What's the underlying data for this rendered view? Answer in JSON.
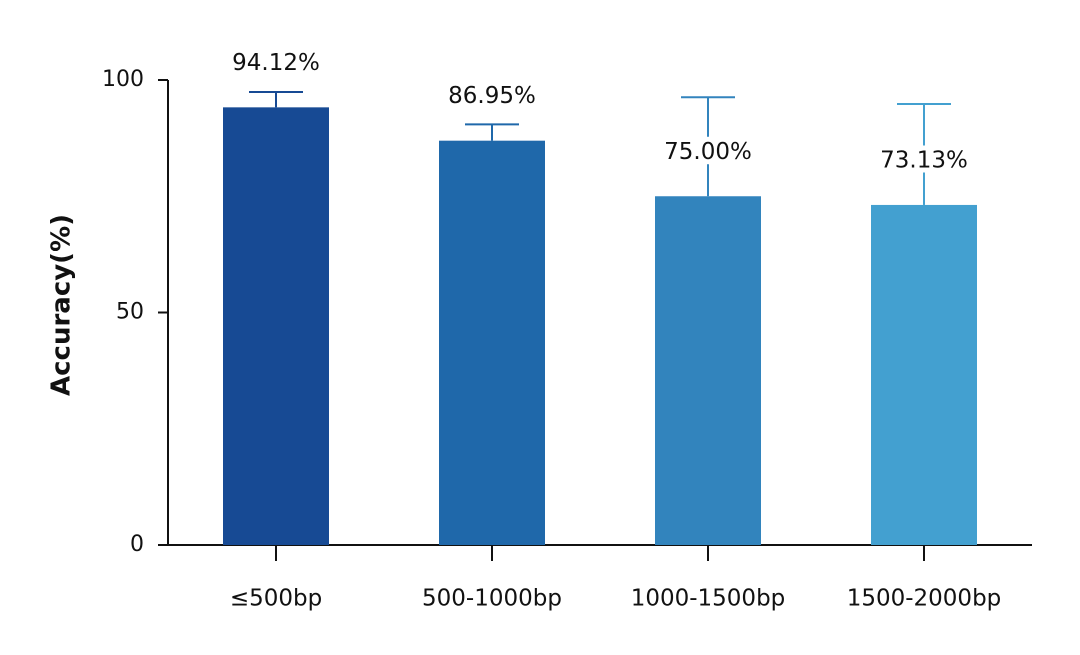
{
  "chart_data": {
    "type": "bar",
    "y_label": "Accuracy(%)",
    "categories": [
      "≤500bp",
      "500-1000bp",
      "1000-1500bp",
      "1500-2000bp"
    ],
    "values": [
      94.12,
      86.95,
      75.0,
      73.13
    ],
    "value_labels": [
      "94.12%",
      "86.95%",
      "75.00%",
      "73.13%"
    ],
    "errors": [
      3.3,
      3.5,
      21.3,
      21.7
    ],
    "colors": [
      "#174a94",
      "#1f68aa",
      "#3284bd",
      "#43a0d0"
    ],
    "ylim": [
      0,
      100
    ],
    "yticks": [
      0,
      50,
      100
    ],
    "grid": false
  }
}
